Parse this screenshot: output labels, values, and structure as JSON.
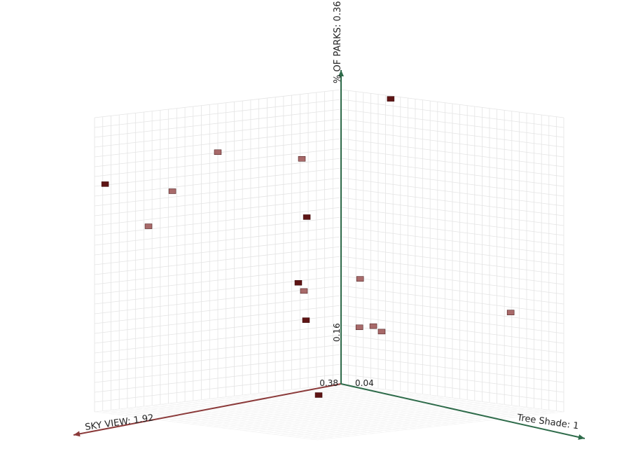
{
  "chart_data": {
    "type": "scatter3d",
    "x_label": "SKY VIEW: 1.92",
    "y_label": "% OF PARKS: 0.36",
    "z_label": "Tree Shade: 1",
    "xlim": [
      0.38,
      1.92
    ],
    "ylim": [
      0.16,
      0.36
    ],
    "zlim": [
      0.04,
      1
    ],
    "xticks": [
      0.38
    ],
    "yticks": [
      0.16
    ],
    "zticks": [
      0.04
    ],
    "x": [
      1.854,
      1.15,
      0.625,
      1.434,
      0.594,
      1.583,
      0.647,
      0.612,
      0.599,
      0.746,
      0.38,
      0.38,
      0.38,
      0.38,
      0.38,
      0.38
    ],
    "y": [
      0.314,
      0.327,
      0.316,
      0.304,
      0.276,
      0.282,
      0.232,
      0.226,
      0.206,
      0.16,
      0.358,
      0.233,
      0.223,
      0.2,
      0.202,
      0.199
    ],
    "z": [
      0.04,
      0.04,
      0.04,
      0.04,
      0.04,
      0.04,
      0.04,
      0.04,
      0.04,
      0.196,
      0.254,
      0.122,
      0.771,
      0.119,
      0.179,
      0.215
    ],
    "colors": [
      "#5e1414",
      "#a86a6a",
      "#a86a6a",
      "#a86a6a",
      "#5e1414",
      "#a86a6a",
      "#5e1414",
      "#a86a6a",
      "#5e1414",
      "#5e1414",
      "#5e1414",
      "#a86a6a",
      "#a86a6a",
      "#a86a6a",
      "#a86a6a",
      "#a86a6a"
    ],
    "grid": true
  }
}
